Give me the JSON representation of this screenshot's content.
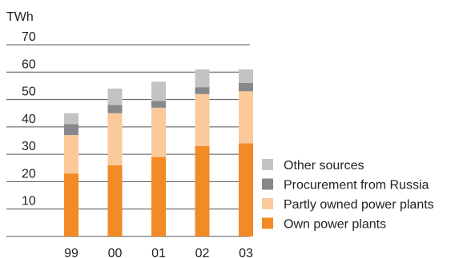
{
  "chart_data": {
    "type": "bar",
    "stacked": true,
    "title": "",
    "ylabel": "TWh",
    "xlabel": "",
    "ylim": [
      0,
      70
    ],
    "yticks": [
      10,
      20,
      30,
      40,
      50,
      60,
      70
    ],
    "grid": true,
    "legend_position": "right",
    "categories": [
      "99",
      "00",
      "01",
      "02",
      "03"
    ],
    "series": [
      {
        "name": "Own power plants",
        "color": "#f28a25",
        "values": [
          23,
          26,
          29,
          33,
          34
        ]
      },
      {
        "name": "Partly owned power plants",
        "color": "#fbc99a",
        "values": [
          14,
          19,
          18,
          19,
          19
        ]
      },
      {
        "name": "Procurement from Russia",
        "color": "#88878c",
        "values": [
          4,
          3,
          2.5,
          2.5,
          3
        ]
      },
      {
        "name": "Other sources",
        "color": "#c3c3c3",
        "values": [
          4,
          6,
          7,
          6.5,
          5
        ]
      }
    ],
    "legend_order": [
      "Other sources",
      "Procurement from Russia",
      "Partly owned power plants",
      "Own power plants"
    ]
  }
}
